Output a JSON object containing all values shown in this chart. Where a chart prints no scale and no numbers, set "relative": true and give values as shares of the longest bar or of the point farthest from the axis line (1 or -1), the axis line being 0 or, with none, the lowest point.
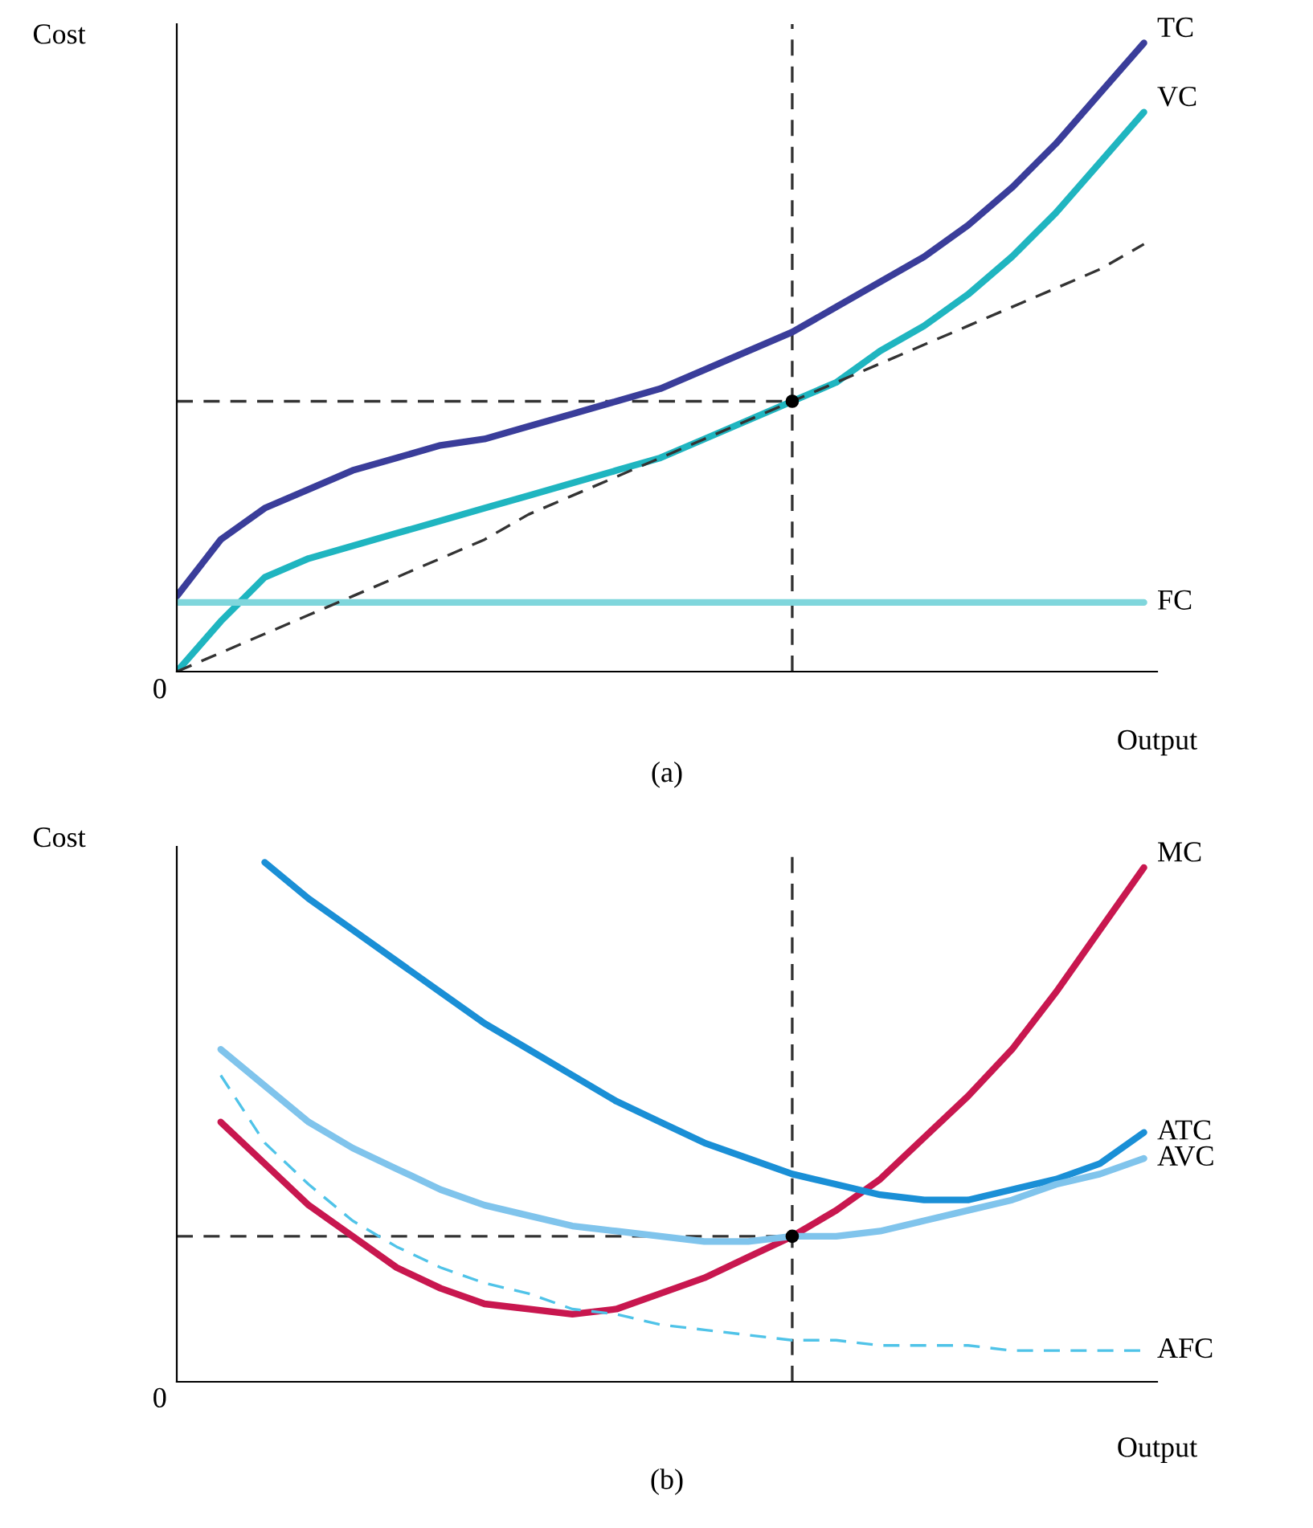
{
  "chart_data": [
    {
      "type": "line",
      "title": "(a)",
      "xlabel": "Output",
      "ylabel": "Cost",
      "relative": true,
      "annotations": [
        "0"
      ],
      "categories": [
        null,
        null,
        null,
        null,
        null,
        null,
        null,
        null,
        null,
        null,
        null,
        null,
        null,
        null,
        null,
        null,
        null,
        null,
        null,
        null,
        null,
        null,
        null
      ],
      "series": [
        {
          "name": "TC",
          "color": "#3a3d9a",
          "values": [
            0.12,
            0.21,
            0.26,
            0.29,
            0.32,
            0.34,
            0.36,
            0.37,
            0.39,
            0.41,
            0.43,
            0.45,
            0.48,
            0.51,
            0.54,
            0.58,
            0.62,
            0.66,
            0.71,
            0.77,
            0.84,
            0.92,
            1
          ]
        },
        {
          "name": "VC",
          "color": "#1fb5c0",
          "values": [
            0,
            0.08,
            0.15,
            0.18,
            0.2,
            0.22,
            0.24,
            0.26,
            0.28,
            0.3,
            0.32,
            0.34,
            0.37,
            0.4,
            0.43,
            0.46,
            0.51,
            0.55,
            0.6,
            0.66,
            0.73,
            0.81,
            0.89
          ]
        },
        {
          "name": "FC",
          "color": "#7fd6dc",
          "values": [
            0.11,
            0.11,
            0.11,
            0.11,
            0.11,
            0.11,
            0.11,
            0.11,
            0.11,
            0.11,
            0.11,
            0.11,
            0.11,
            0.11,
            0.11,
            0.11,
            0.11,
            0.11,
            0.11,
            0.11,
            0.11,
            0.11,
            0.11
          ]
        },
        {
          "color": "#333333",
          "line_style": "dashed",
          "values": [
            0,
            0.03,
            0.06,
            0.09,
            0.12,
            0.15,
            0.18,
            0.21,
            0.25,
            0.28,
            0.31,
            0.34,
            0.37,
            0.4,
            0.43,
            0.46,
            0.49,
            0.52,
            0.55,
            0.58,
            0.61,
            0.64,
            0.68
          ]
        }
      ],
      "ref_lines": [
        {
          "axis": "y",
          "value": 0.43,
          "color": "#333333",
          "line_style": "dashed"
        }
      ]
    },
    {
      "type": "line",
      "title": "(b)",
      "xlabel": "Output",
      "ylabel": "Cost",
      "relative": true,
      "annotations": [
        "0"
      ],
      "categories": [
        null,
        null,
        null,
        null,
        null,
        null,
        null,
        null,
        null,
        null,
        null,
        null,
        null,
        null,
        null,
        null,
        null,
        null,
        null,
        null,
        null,
        null,
        null
      ],
      "series": [
        {
          "name": "MC",
          "color": "#c8174f",
          "values": [
            null,
            0.5,
            0.42,
            0.34,
            0.28,
            0.22,
            0.18,
            0.15,
            0.14,
            0.13,
            0.14,
            0.17,
            0.2,
            0.24,
            0.28,
            0.33,
            0.39,
            0.47,
            0.55,
            0.64,
            0.75,
            0.87,
            0.99
          ]
        },
        {
          "name": "ATC",
          "color": "#1a8fd6",
          "values": [
            null,
            null,
            1,
            0.93,
            0.87,
            0.81,
            0.75,
            0.69,
            0.64,
            0.59,
            0.54,
            0.5,
            0.46,
            0.43,
            0.4,
            0.38,
            0.36,
            0.35,
            0.35,
            0.37,
            0.39,
            0.42,
            0.48
          ]
        },
        {
          "name": "AVC",
          "color": "#80c4ec",
          "values": [
            null,
            0.64,
            0.57,
            0.5,
            0.45,
            0.41,
            0.37,
            0.34,
            0.32,
            0.3,
            0.29,
            0.28,
            0.27,
            0.27,
            0.28,
            0.28,
            0.29,
            0.31,
            0.33,
            0.35,
            0.38,
            0.4,
            0.43
          ]
        },
        {
          "name": "AFC",
          "color": "#4fc3e8",
          "line_style": "dashed",
          "values": [
            null,
            0.59,
            0.46,
            0.38,
            0.31,
            0.26,
            0.22,
            0.19,
            0.17,
            0.14,
            0.13,
            0.11,
            0.1,
            0.09,
            0.08,
            0.08,
            0.07,
            0.07,
            0.07,
            0.06,
            0.06,
            0.06,
            0.06
          ]
        }
      ],
      "ref_lines": [
        {
          "axis": "y",
          "value": 0.28,
          "color": "#333333",
          "line_style": "dashed"
        }
      ]
    }
  ]
}
